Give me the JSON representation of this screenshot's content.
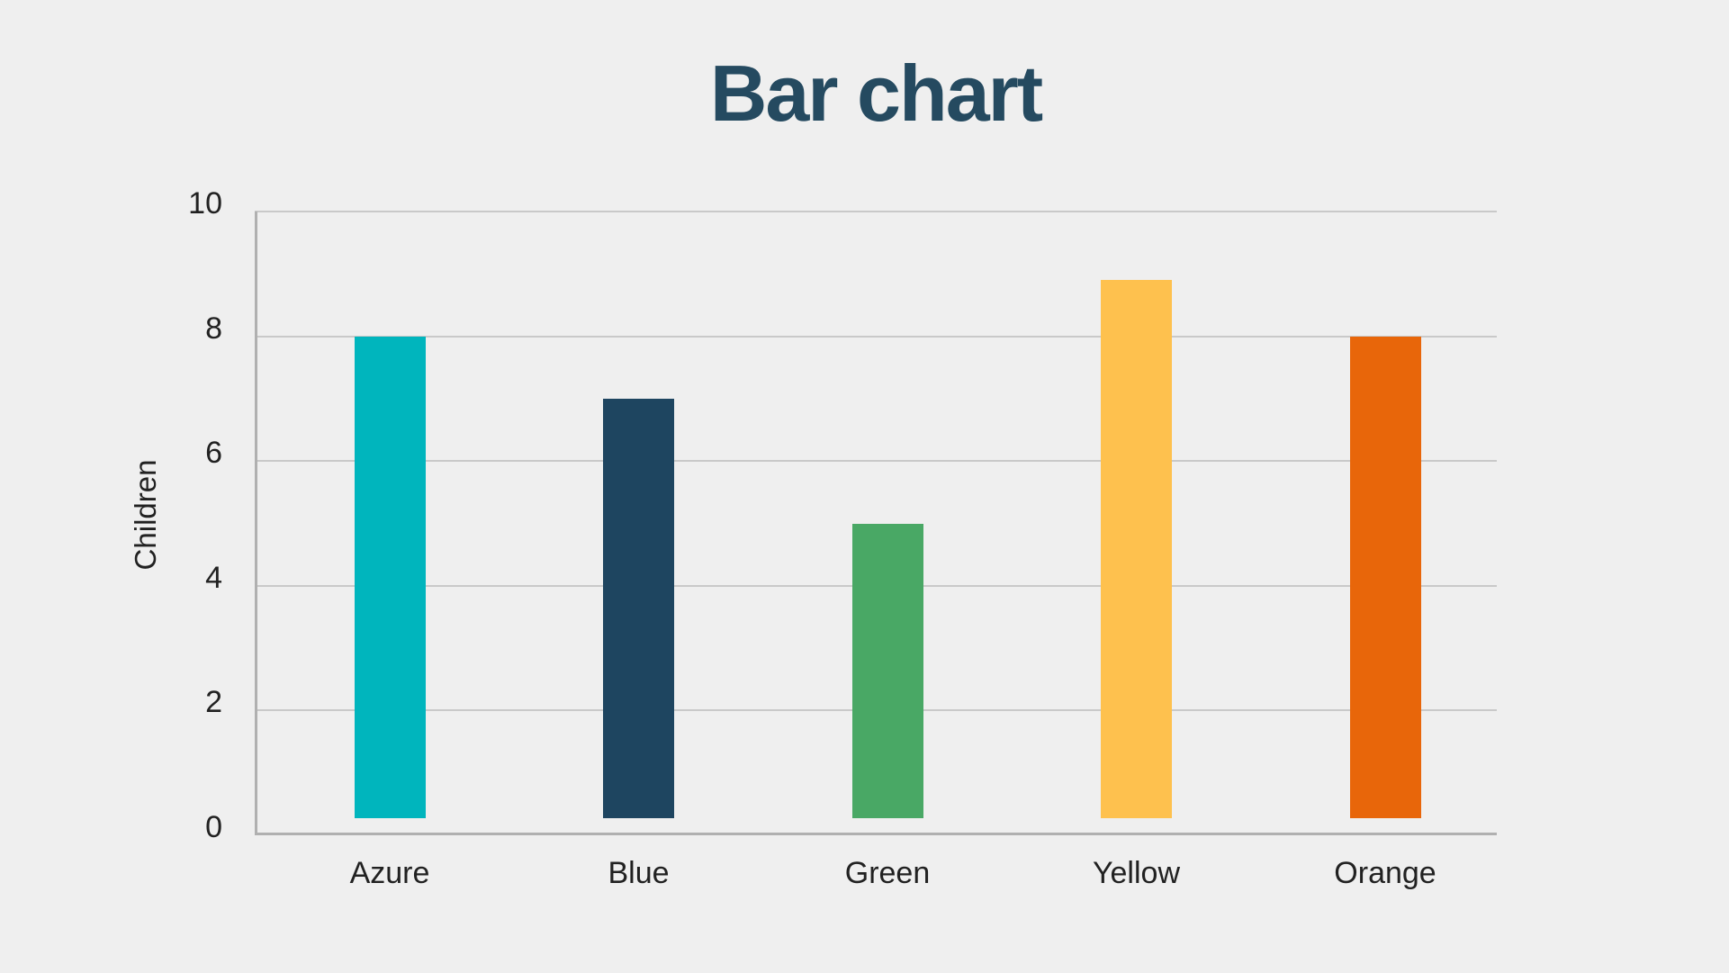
{
  "page": {
    "background_color": "#efefef"
  },
  "chart_data": {
    "type": "bar",
    "title": "Bar chart",
    "xlabel": "",
    "ylabel": "Children",
    "categories": [
      "Azure",
      "Blue",
      "Green",
      "Yellow",
      "Orange"
    ],
    "values": [
      8,
      7,
      5,
      8.9,
      8
    ],
    "bar_colors": [
      "#00b5bd",
      "#1e4560",
      "#49a865",
      "#fec14e",
      "#e8660a"
    ],
    "ylim": [
      0,
      10
    ],
    "yticks": [
      0,
      2,
      4,
      6,
      8,
      10
    ],
    "grid": "horizontal gridlines on",
    "legend": "none",
    "title_color": "#254a60",
    "axis_text_color": "#212121",
    "gridline_color": "#c9c9c9",
    "axis_line_color": "#b0b0b0"
  }
}
